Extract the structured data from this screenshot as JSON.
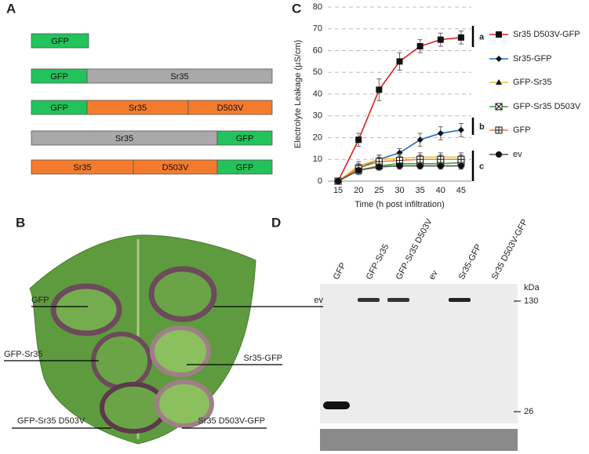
{
  "panel_labels": [
    "A",
    "B",
    "C",
    "D"
  ],
  "constructs": [
    {
      "segments": [
        {
          "label": "GFP",
          "color": "#22c35a"
        }
      ]
    },
    {
      "segments": [
        {
          "label": "GFP",
          "color": "#22c35a"
        },
        {
          "label": "Sr35",
          "color": "#a9a9a9"
        }
      ]
    },
    {
      "segments": [
        {
          "label": "GFP",
          "color": "#22c35a"
        },
        {
          "label": "Sr35",
          "color": "#f47b2c"
        },
        {
          "label": "D503V",
          "color": "#f47b2c"
        }
      ]
    },
    {
      "segments": [
        {
          "label": "Sr35",
          "color": "#a9a9a9"
        },
        {
          "label": "GFP",
          "color": "#22c35a"
        }
      ]
    },
    {
      "segments": [
        {
          "label": "Sr35",
          "color": "#f47b2c"
        },
        {
          "label": "D503V",
          "color": "#f47b2c"
        },
        {
          "label": "GFP",
          "color": "#22c35a"
        }
      ]
    }
  ],
  "leaf_labels": [
    "GFP",
    "ev",
    "GFP-Sr35",
    "Sr35-GFP",
    "GFP-Sr35 D503V",
    "Sr35 D503V-GFP"
  ],
  "blot": {
    "lanes": [
      "GFP",
      "GFP-Sr35",
      "GFP-Sr35 D503V",
      "ev",
      "Sr35-GFP",
      "Sr35 D503V-GFP"
    ],
    "unit": "kDa",
    "markers": [
      130,
      26
    ]
  },
  "chart_data": {
    "type": "line",
    "x_label": "Time (h post infiltration)",
    "y_label": "Electrolyte Leakage (µS/cm)",
    "categories": [
      "15",
      "20",
      "25",
      "30",
      "35",
      "40",
      "45"
    ],
    "ylim": [
      0,
      80
    ],
    "yticks": [
      0,
      10,
      20,
      30,
      40,
      50,
      60,
      70,
      80
    ],
    "grid": true,
    "series": [
      {
        "name": "Sr35 D503V-GFP",
        "color": "#e0201b",
        "marker": "square",
        "values": [
          0,
          19,
          42,
          55,
          62,
          65,
          66
        ],
        "errors": [
          0,
          3,
          5,
          4,
          3,
          3,
          3
        ]
      },
      {
        "name": "Sr35-GFP",
        "color": "#1f6fc0",
        "marker": "diamond",
        "values": [
          0,
          6,
          10,
          13,
          19,
          22,
          23.5
        ],
        "errors": [
          0,
          2,
          2,
          2,
          3,
          3,
          3
        ]
      },
      {
        "name": "GFP-Sr35",
        "color": "#f2c12e",
        "marker": "triangle",
        "values": [
          0,
          7,
          10,
          10.5,
          11,
          11,
          11
        ],
        "errors": [
          0,
          2,
          2,
          2,
          2,
          2,
          2
        ]
      },
      {
        "name": "GFP-Sr35 D503V",
        "color": "#3aa33a",
        "marker": "xbox",
        "values": [
          0,
          5,
          7,
          8,
          8,
          8,
          8.5
        ],
        "errors": [
          0,
          2,
          2,
          2,
          2,
          2,
          2
        ]
      },
      {
        "name": "GFP",
        "color": "#f47b2c",
        "marker": "plusbox",
        "values": [
          0,
          6,
          9,
          9.5,
          10,
          10,
          10
        ],
        "errors": [
          0,
          2,
          2,
          2,
          2,
          2,
          2
        ]
      },
      {
        "name": "ev",
        "color": "#555555",
        "marker": "circle",
        "values": [
          0,
          5,
          6.5,
          7,
          7,
          7,
          7
        ],
        "errors": [
          0,
          2,
          1.5,
          1.5,
          1.5,
          1.5,
          1.5
        ]
      }
    ],
    "annotations": [
      "a",
      "b",
      "c"
    ]
  }
}
